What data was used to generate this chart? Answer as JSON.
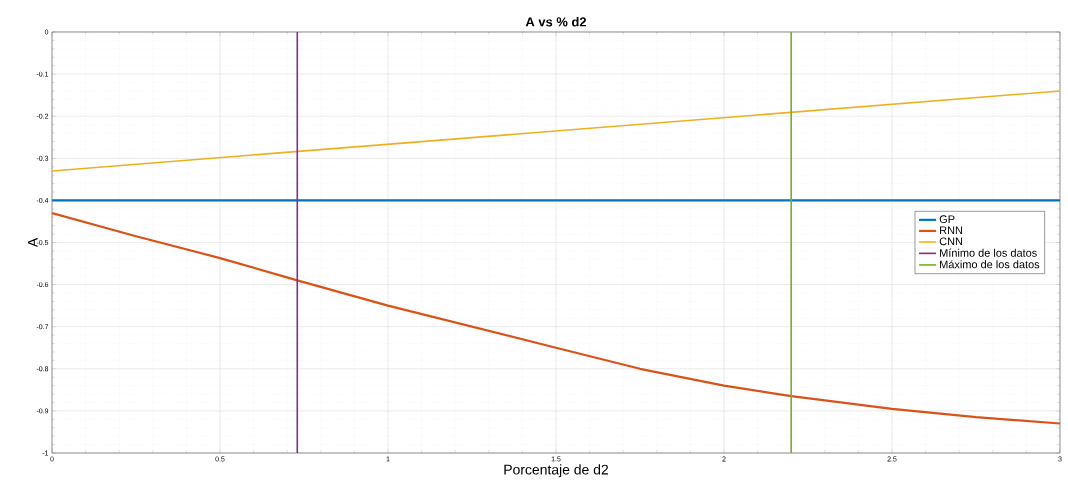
{
  "chart_data": {
    "type": "line",
    "title": "A vs % d2",
    "xlabel": "Porcentaje de d2",
    "ylabel": "A",
    "x": [
      0,
      0.25,
      0.5,
      0.73,
      1,
      1.25,
      1.5,
      1.75,
      2,
      2.2,
      2.5,
      2.75,
      3
    ],
    "series": [
      {
        "name": "GP",
        "color": "#0072bd",
        "x": [
          0,
          3
        ],
        "values": [
          -0.4,
          -0.4
        ]
      },
      {
        "name": "RNN",
        "color": "#d95319",
        "values": [
          -0.43,
          -0.485,
          -0.537,
          -0.59,
          -0.65,
          -0.7,
          -0.75,
          -0.8,
          -0.84,
          -0.865,
          -0.895,
          -0.915,
          -0.93
        ]
      },
      {
        "name": "CNN",
        "color": "#edb120",
        "x": [
          0,
          3
        ],
        "values": [
          -0.33,
          -0.14
        ]
      },
      {
        "name": "Mínimo de los datos",
        "color": "#7e2f8e",
        "x": [
          0.73,
          0.73
        ],
        "values": [
          -1,
          0
        ]
      },
      {
        "name": "Máximo de los datos",
        "color": "#77ac30",
        "x": [
          2.2,
          2.2
        ],
        "values": [
          -1,
          0
        ]
      }
    ],
    "xlim": [
      0,
      3
    ],
    "ylim": [
      -1,
      0
    ],
    "xticks": [
      0,
      0.5,
      1,
      1.5,
      2,
      2.5,
      3
    ],
    "yticks": [
      -1,
      -0.9,
      -0.8,
      -0.7,
      -0.6,
      -0.5,
      -0.4,
      -0.3,
      -0.2,
      -0.1,
      0
    ],
    "grid": true,
    "legend": "right",
    "marker": "none",
    "line_style": "solid"
  }
}
